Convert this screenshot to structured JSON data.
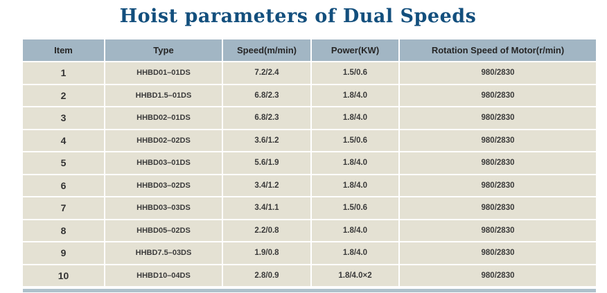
{
  "title": "Hoist parameters of Dual Speeds",
  "colors": {
    "title_text": "#134f7d",
    "header_bg": "#a2b6c4",
    "row_bg": "#e4e1d3",
    "bottom_bar": "#aec0cb",
    "page_bg": "#ffffff"
  },
  "table": {
    "columns": [
      "Item",
      "Type",
      "Speed(m/min)",
      "Power(KW)",
      "Rotation Speed of Motor(r/min)"
    ],
    "rows": [
      {
        "item": "1",
        "type": "HHBD01–01DS",
        "speed": "7.2/2.4",
        "power": "1.5/0.6",
        "rotation": "980/2830"
      },
      {
        "item": "2",
        "type": "HHBD1.5–01DS",
        "speed": "6.8/2.3",
        "power": "1.8/4.0",
        "rotation": "980/2830"
      },
      {
        "item": "3",
        "type": "HHBD02–01DS",
        "speed": "6.8/2.3",
        "power": "1.8/4.0",
        "rotation": "980/2830"
      },
      {
        "item": "4",
        "type": "HHBD02–02DS",
        "speed": "3.6/1.2",
        "power": "1.5/0.6",
        "rotation": "980/2830"
      },
      {
        "item": "5",
        "type": "HHBD03–01DS",
        "speed": "5.6/1.9",
        "power": "1.8/4.0",
        "rotation": "980/2830"
      },
      {
        "item": "6",
        "type": "HHBD03–02DS",
        "speed": "3.4/1.2",
        "power": "1.8/4.0",
        "rotation": "980/2830"
      },
      {
        "item": "7",
        "type": "HHBD03–03DS",
        "speed": "3.4/1.1",
        "power": "1.5/0.6",
        "rotation": "980/2830"
      },
      {
        "item": "8",
        "type": "HHBD05–02DS",
        "speed": "2.2/0.8",
        "power": "1.8/4.0",
        "rotation": "980/2830"
      },
      {
        "item": "9",
        "type": "HHBD7.5–03DS",
        "speed": "1.9/0.8",
        "power": "1.8/4.0",
        "rotation": "980/2830"
      },
      {
        "item": "10",
        "type": "HHBD10–04DS",
        "speed": "2.8/0.9",
        "power": "1.8/4.0×2",
        "rotation": "980/2830"
      }
    ]
  }
}
